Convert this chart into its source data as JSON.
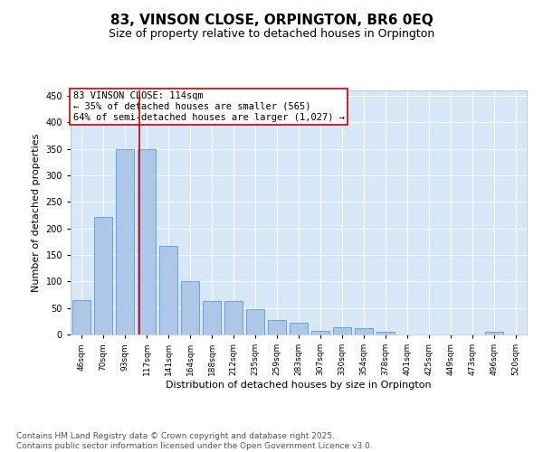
{
  "title": "83, VINSON CLOSE, ORPINGTON, BR6 0EQ",
  "subtitle": "Size of property relative to detached houses in Orpington",
  "xlabel": "Distribution of detached houses by size in Orpington",
  "ylabel": "Number of detached properties",
  "categories": [
    "46sqm",
    "70sqm",
    "93sqm",
    "117sqm",
    "141sqm",
    "164sqm",
    "188sqm",
    "212sqm",
    "235sqm",
    "259sqm",
    "283sqm",
    "307sqm",
    "330sqm",
    "354sqm",
    "378sqm",
    "401sqm",
    "425sqm",
    "449sqm",
    "473sqm",
    "496sqm",
    "520sqm"
  ],
  "values": [
    65,
    222,
    350,
    350,
    167,
    100,
    63,
    63,
    47,
    28,
    23,
    7,
    13,
    12,
    5,
    0,
    0,
    0,
    0,
    5,
    0
  ],
  "bar_color": "#aec6e8",
  "bar_edge_color": "#5b9bd5",
  "plot_bg_color": "#d6e8f7",
  "fig_bg_color": "#ffffff",
  "vline_color": "#cc0000",
  "vline_x": 2.65,
  "annotation_text": "83 VINSON CLOSE: 114sqm\n← 35% of detached houses are smaller (565)\n64% of semi-detached houses are larger (1,027) →",
  "annotation_box_color": "#cc0000",
  "ylim": [
    0,
    460
  ],
  "yticks": [
    0,
    50,
    100,
    150,
    200,
    250,
    300,
    350,
    400,
    450
  ],
  "footer_text": "Contains HM Land Registry data © Crown copyright and database right 2025.\nContains public sector information licensed under the Open Government Licence v3.0.",
  "title_fontsize": 11,
  "subtitle_fontsize": 9,
  "axis_label_fontsize": 8,
  "tick_fontsize": 7,
  "annotation_fontsize": 7.5,
  "footer_fontsize": 6.5
}
